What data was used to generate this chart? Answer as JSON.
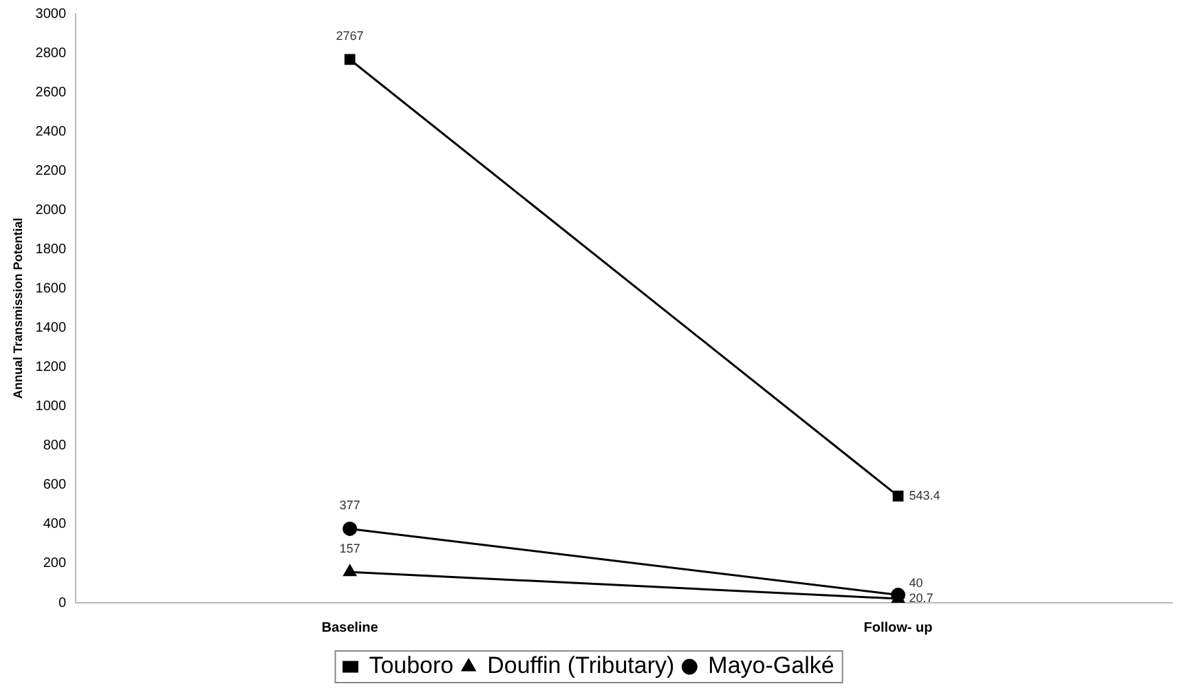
{
  "chart_data": {
    "type": "line",
    "ylabel": "Annual Transmission Potential",
    "categories": [
      "Baseline",
      "Follow- up"
    ],
    "series": [
      {
        "name": "Touboro",
        "color": "#000000",
        "marker": "square",
        "values": [
          2767,
          543.4
        ]
      },
      {
        "name": "Douffin (Tributary)",
        "color": "#000000",
        "marker": "triangle",
        "values": [
          157,
          20.7
        ]
      },
      {
        "name": "Mayo-Galké",
        "color": "#000000",
        "marker": "circle",
        "values": [
          377,
          40
        ]
      }
    ],
    "ylim": [
      0,
      3000
    ],
    "yticks": [
      0,
      200,
      400,
      600,
      800,
      1000,
      1200,
      1400,
      1600,
      1800,
      2000,
      2200,
      2400,
      2600,
      2800,
      3000
    ],
    "grid": false,
    "legend": "bottom",
    "data_labels": true,
    "line_style": "solid"
  }
}
